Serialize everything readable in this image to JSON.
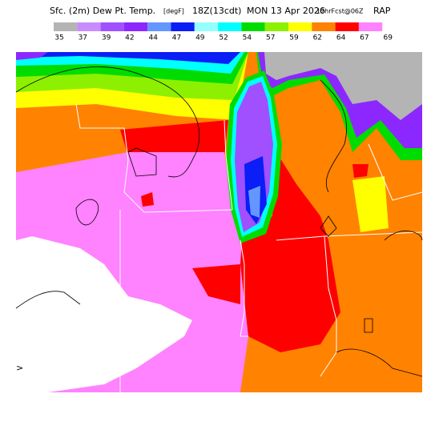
{
  "header": {
    "field": "Sfc. (2m) Dew Pt. Temp.",
    "units": "[degF]",
    "valid": "18Z(13cdt)",
    "date": "MON 13 Apr 2026",
    "forecast": "12hrFcst@06Z",
    "model": "RAP"
  },
  "legend": {
    "colors": [
      "#b4b4b4",
      "#c88cff",
      "#a050ff",
      "#8c28ff",
      "#6496ff",
      "#0a1ef5",
      "#96ffff",
      "#00ffff",
      "#00dc00",
      "#8cf000",
      "#ffff00",
      "#ff8200",
      "#ff0000",
      "#ff82ff"
    ],
    "labels": [
      "35",
      "37",
      "39",
      "42",
      "44",
      "47",
      "49",
      "52",
      "54",
      "57",
      "59",
      "62",
      "64",
      "67",
      "69"
    ]
  },
  "marker": ">"
}
